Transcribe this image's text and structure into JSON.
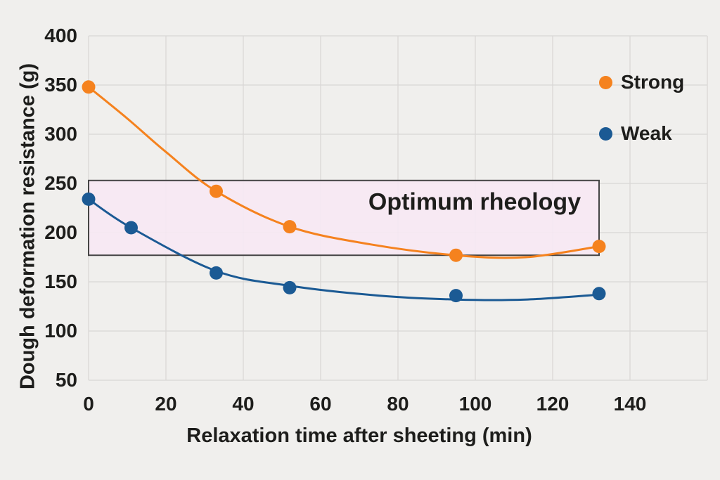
{
  "figure": {
    "background_color": "#F0EFED",
    "gridline_color": "#D8D7D5",
    "text_color": "#1D1D1B"
  },
  "chart_data": {
    "type": "scatter",
    "subtype": "scatter-with-fitted-curves",
    "title": "",
    "xlabel": "Relaxation time after sheeting (min)",
    "ylabel": "Dough deformation resistance (g)",
    "xlim": [
      0,
      160
    ],
    "ylim": [
      50,
      400
    ],
    "grid": true,
    "x_ticks": [
      0,
      20,
      40,
      60,
      80,
      100,
      120,
      140
    ],
    "y_ticks": [
      400,
      350,
      300,
      250,
      200,
      150,
      100,
      50
    ],
    "legend_position": "upper-right",
    "legend": [
      {
        "label": "Strong",
        "color": "#F5821E"
      },
      {
        "label": "Weak",
        "color": "#1B5A94"
      }
    ],
    "series": [
      {
        "name": "Strong",
        "color": "#F5821E",
        "points": [
          [
            0,
            348
          ],
          [
            33,
            242
          ],
          [
            52,
            206
          ],
          [
            95,
            177
          ],
          [
            132,
            186
          ]
        ],
        "trend_curve": [
          [
            0,
            348
          ],
          [
            10,
            316
          ],
          [
            20,
            282
          ],
          [
            33,
            242
          ],
          [
            52,
            206
          ],
          [
            73,
            188
          ],
          [
            95,
            177
          ],
          [
            113,
            175
          ],
          [
            132,
            186
          ]
        ]
      },
      {
        "name": "Weak",
        "color": "#1B5A94",
        "points": [
          [
            0,
            234
          ],
          [
            11,
            205
          ],
          [
            33,
            159
          ],
          [
            52,
            144
          ],
          [
            95,
            136
          ],
          [
            132,
            138
          ]
        ],
        "trend_curve": [
          [
            0,
            234
          ],
          [
            11,
            205
          ],
          [
            33,
            161
          ],
          [
            52,
            146
          ],
          [
            75,
            136
          ],
          [
            95,
            132
          ],
          [
            113,
            132
          ],
          [
            132,
            137
          ]
        ]
      }
    ],
    "annotation_zone": {
      "label": "Optimum rheology",
      "x_range": [
        0,
        132
      ],
      "y_range": [
        177,
        253
      ],
      "fill_color": "#F7E8F4",
      "border_color": "#454545"
    }
  }
}
